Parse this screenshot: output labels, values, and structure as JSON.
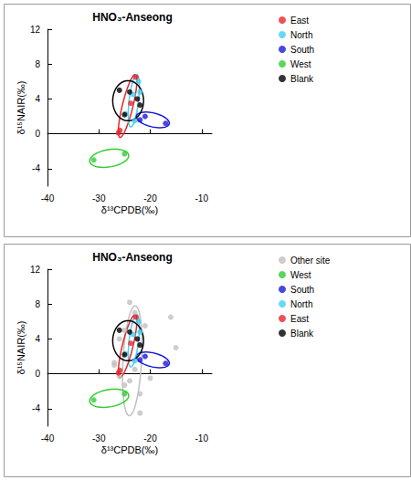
{
  "chart_data": [
    {
      "type": "scatter",
      "title": "HNO₃-Anseong",
      "x_label": "δ¹³CPDB(‰)",
      "y_label": "δ¹⁵NAIR(‰)",
      "xlim": [
        -40,
        -8
      ],
      "ylim": [
        -6,
        12
      ],
      "xticks": [
        -40,
        -30,
        -20,
        -10
      ],
      "yticks": [
        -4,
        0,
        4,
        8,
        12
      ],
      "legend": "right",
      "marker": "circle",
      "series": [
        {
          "name": "East",
          "color": "#e8262b",
          "x": [
            -26.2,
            -25.9,
            -23.8,
            -22.8
          ],
          "y": [
            0.1,
            0.4,
            3.5,
            6.5
          ],
          "ellipse": {
            "center": [
              -24.4,
              3.2
            ],
            "axis1": [
              1.5,
              3.6
            ],
            "axis2": [
              -1.0,
              0.15
            ]
          }
        },
        {
          "name": "North",
          "color": "#40d0f0",
          "x": [
            -22.3,
            -22.0,
            -24.8,
            -23.0,
            -23.3
          ],
          "y": [
            6.0,
            4.8,
            2.3,
            1.5,
            4.5
          ],
          "ellipse": {
            "center": [
              -23.2,
              3.8
            ],
            "axis1": [
              0.6,
              3.0
            ],
            "axis2": [
              -0.9,
              0.1
            ]
          }
        },
        {
          "name": "South",
          "color": "#1a1ad8",
          "x": [
            -22.0,
            -21.0,
            -17.0
          ],
          "y": [
            1.6,
            2.0,
            1.2
          ],
          "ellipse": {
            "center": [
              -19.5,
              1.6
            ],
            "axis1": [
              3.2,
              -0.4
            ],
            "axis2": [
              0.1,
              0.8
            ]
          }
        },
        {
          "name": "West",
          "color": "#33cc33",
          "x": [
            -31.0,
            -25.0
          ],
          "y": [
            -3.0,
            -2.3
          ],
          "ellipse": {
            "center": [
              -28.0,
              -2.8
            ],
            "axis1": [
              3.8,
              0.3
            ],
            "axis2": [
              0.0,
              1.0
            ]
          }
        },
        {
          "name": "Blank",
          "color": "#000000",
          "x": [
            -26.0,
            -25.0,
            -24.0,
            -22.5,
            -22.0
          ],
          "y": [
            5.0,
            2.2,
            4.8,
            4.0,
            3.3
          ],
          "ellipse": {
            "center": [
              -24.3,
              3.8
            ],
            "axis1": [
              3.0,
              0.0
            ],
            "axis2": [
              0.0,
              2.3
            ]
          }
        }
      ]
    },
    {
      "type": "scatter",
      "title": "HNO₃-Anseong",
      "x_label": "δ¹³CPDB(‰)",
      "y_label": "δ¹⁵NAIR(‰)",
      "xlim": [
        -40,
        -8
      ],
      "ylim": [
        -6,
        12
      ],
      "xticks": [
        -40,
        -30,
        -20,
        -10
      ],
      "yticks": [
        -4,
        0,
        4,
        8,
        12
      ],
      "legend": "right",
      "marker": "circle",
      "series": [
        {
          "name": "Other site",
          "color": "#c0c0c0",
          "x": [
            -27.0,
            -26.0,
            -25.0,
            -24.0,
            -23.0,
            -24.0,
            -22.0,
            -22.0,
            -25.0,
            -20.0,
            -15.0,
            -16.0,
            -23.0,
            -26.0,
            -27.0,
            -21.0
          ],
          "y": [
            1.3,
            4.0,
            5.0,
            8.2,
            7.0,
            -0.8,
            -2.3,
            -4.5,
            -1.3,
            -0.5,
            3.0,
            6.5,
            0.5,
            -0.3,
            1.0,
            5.5
          ],
          "ellipse": {
            "center": [
              -23.5,
              1.5
            ],
            "axis1": [
              0.6,
              6.3
            ],
            "axis2": [
              -1.8,
              0.1
            ]
          }
        },
        {
          "name": "West",
          "color": "#33cc33",
          "x": [
            -31.0,
            -25.0
          ],
          "y": [
            -3.0,
            -2.3
          ],
          "ellipse": {
            "center": [
              -28.0,
              -2.8
            ],
            "axis1": [
              3.8,
              0.3
            ],
            "axis2": [
              0.0,
              1.0
            ]
          }
        },
        {
          "name": "South",
          "color": "#1a1ad8",
          "x": [
            -22.0,
            -21.0,
            -17.0
          ],
          "y": [
            1.6,
            2.0,
            1.2
          ],
          "ellipse": {
            "center": [
              -19.5,
              1.6
            ],
            "axis1": [
              3.2,
              -0.4
            ],
            "axis2": [
              0.1,
              0.8
            ]
          }
        },
        {
          "name": "North",
          "color": "#40d0f0",
          "x": [
            -22.3,
            -22.0,
            -24.8,
            -23.0,
            -23.3
          ],
          "y": [
            6.0,
            4.8,
            2.3,
            1.5,
            4.5
          ],
          "ellipse": {
            "center": [
              -23.2,
              3.8
            ],
            "axis1": [
              0.6,
              3.0
            ],
            "axis2": [
              -0.9,
              0.1
            ]
          }
        },
        {
          "name": "East",
          "color": "#e8262b",
          "x": [
            -26.2,
            -25.9,
            -23.8,
            -22.8
          ],
          "y": [
            0.1,
            0.4,
            3.5,
            6.5
          ],
          "ellipse": {
            "center": [
              -24.4,
              3.2
            ],
            "axis1": [
              1.5,
              3.6
            ],
            "axis2": [
              -1.0,
              0.15
            ]
          }
        },
        {
          "name": "Blank",
          "color": "#000000",
          "x": [
            -26.0,
            -25.0,
            -24.0,
            -22.5,
            -22.0
          ],
          "y": [
            5.0,
            2.2,
            4.8,
            4.0,
            3.3
          ],
          "ellipse": {
            "center": [
              -24.3,
              3.8
            ],
            "axis1": [
              3.0,
              0.0
            ],
            "axis2": [
              0.0,
              2.3
            ]
          }
        }
      ]
    }
  ]
}
